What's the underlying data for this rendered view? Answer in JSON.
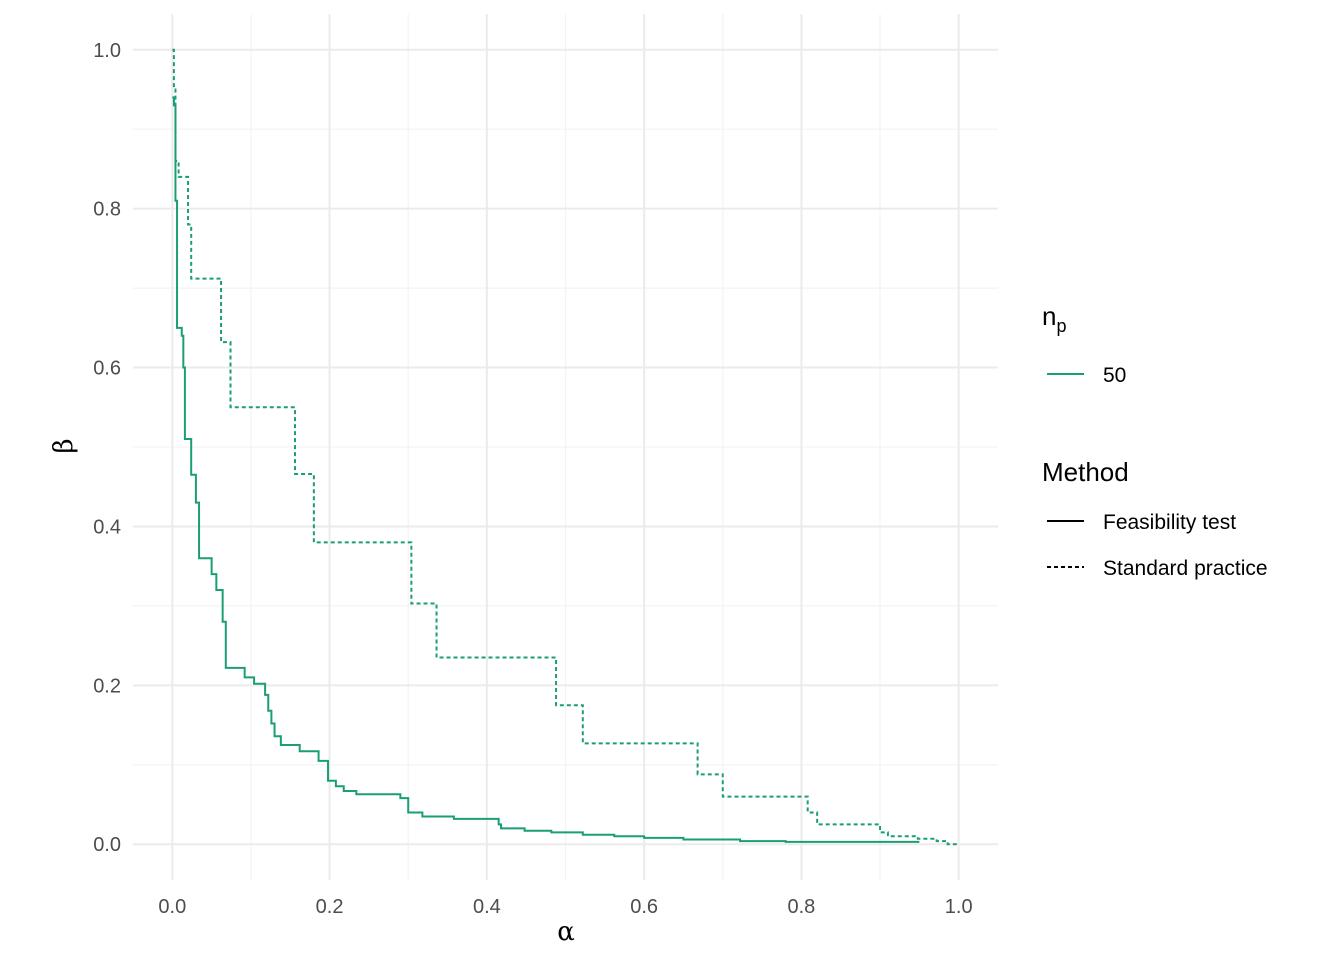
{
  "chart_data": {
    "type": "line",
    "title": "",
    "xlabel": "α",
    "ylabel": "β",
    "xlim": [
      -0.05,
      1.05
    ],
    "ylim": [
      -0.045,
      1.045
    ],
    "xticks": [
      0.0,
      0.2,
      0.4,
      0.6,
      0.8,
      1.0
    ],
    "yticks": [
      0.0,
      0.2,
      0.4,
      0.6,
      0.8,
      1.0
    ],
    "xtick_labels": [
      "0.0",
      "0.2",
      "0.4",
      "0.6",
      "0.8",
      "1.0"
    ],
    "ytick_labels": [
      "0.0",
      "0.2",
      "0.4",
      "0.6",
      "0.8",
      "1.0"
    ],
    "grid": true,
    "legend_position": "right",
    "color": "#1b9e77",
    "legend": {
      "np": {
        "title_main": "n",
        "title_sub": "p",
        "entries": [
          "50"
        ]
      },
      "method": {
        "title": "Method",
        "entries": [
          "Feasibility test",
          "Standard practice"
        ]
      }
    },
    "series": [
      {
        "name": "Feasibility test",
        "linestyle": "solid",
        "points": [
          [
            0.0,
            0.94
          ],
          [
            0.002,
            0.94
          ],
          [
            0.002,
            0.93
          ],
          [
            0.004,
            0.93
          ],
          [
            0.004,
            0.81
          ],
          [
            0.006,
            0.81
          ],
          [
            0.006,
            0.65
          ],
          [
            0.012,
            0.65
          ],
          [
            0.012,
            0.64
          ],
          [
            0.014,
            0.64
          ],
          [
            0.014,
            0.6
          ],
          [
            0.016,
            0.6
          ],
          [
            0.016,
            0.51
          ],
          [
            0.024,
            0.51
          ],
          [
            0.024,
            0.465
          ],
          [
            0.03,
            0.465
          ],
          [
            0.03,
            0.43
          ],
          [
            0.034,
            0.43
          ],
          [
            0.034,
            0.36
          ],
          [
            0.05,
            0.36
          ],
          [
            0.05,
            0.34
          ],
          [
            0.056,
            0.34
          ],
          [
            0.056,
            0.32
          ],
          [
            0.064,
            0.32
          ],
          [
            0.064,
            0.28
          ],
          [
            0.068,
            0.28
          ],
          [
            0.068,
            0.222
          ],
          [
            0.092,
            0.222
          ],
          [
            0.092,
            0.21
          ],
          [
            0.104,
            0.21
          ],
          [
            0.104,
            0.202
          ],
          [
            0.118,
            0.202
          ],
          [
            0.118,
            0.188
          ],
          [
            0.122,
            0.188
          ],
          [
            0.122,
            0.168
          ],
          [
            0.126,
            0.168
          ],
          [
            0.126,
            0.152
          ],
          [
            0.13,
            0.152
          ],
          [
            0.13,
            0.136
          ],
          [
            0.138,
            0.136
          ],
          [
            0.138,
            0.125
          ],
          [
            0.162,
            0.125
          ],
          [
            0.162,
            0.117
          ],
          [
            0.186,
            0.117
          ],
          [
            0.186,
            0.105
          ],
          [
            0.198,
            0.105
          ],
          [
            0.198,
            0.08
          ],
          [
            0.208,
            0.08
          ],
          [
            0.208,
            0.073
          ],
          [
            0.218,
            0.073
          ],
          [
            0.218,
            0.067
          ],
          [
            0.234,
            0.067
          ],
          [
            0.234,
            0.063
          ],
          [
            0.29,
            0.063
          ],
          [
            0.29,
            0.058
          ],
          [
            0.3,
            0.058
          ],
          [
            0.3,
            0.04
          ],
          [
            0.318,
            0.04
          ],
          [
            0.318,
            0.035
          ],
          [
            0.358,
            0.035
          ],
          [
            0.358,
            0.032
          ],
          [
            0.415,
            0.032
          ],
          [
            0.415,
            0.025
          ],
          [
            0.418,
            0.025
          ],
          [
            0.418,
            0.02
          ],
          [
            0.448,
            0.02
          ],
          [
            0.448,
            0.017
          ],
          [
            0.482,
            0.017
          ],
          [
            0.482,
            0.015
          ],
          [
            0.522,
            0.015
          ],
          [
            0.522,
            0.012
          ],
          [
            0.562,
            0.012
          ],
          [
            0.562,
            0.01
          ],
          [
            0.6,
            0.01
          ],
          [
            0.6,
            0.008
          ],
          [
            0.65,
            0.008
          ],
          [
            0.65,
            0.006
          ],
          [
            0.722,
            0.006
          ],
          [
            0.722,
            0.004
          ],
          [
            0.78,
            0.004
          ],
          [
            0.78,
            0.003
          ],
          [
            0.95,
            0.003
          ]
        ]
      },
      {
        "name": "Standard practice",
        "linestyle": "dashed",
        "points": [
          [
            0.0,
            1.0
          ],
          [
            0.002,
            1.0
          ],
          [
            0.002,
            0.95
          ],
          [
            0.004,
            0.95
          ],
          [
            0.004,
            0.86
          ],
          [
            0.008,
            0.86
          ],
          [
            0.008,
            0.84
          ],
          [
            0.02,
            0.84
          ],
          [
            0.02,
            0.78
          ],
          [
            0.024,
            0.78
          ],
          [
            0.024,
            0.712
          ],
          [
            0.062,
            0.712
          ],
          [
            0.062,
            0.632
          ],
          [
            0.074,
            0.632
          ],
          [
            0.074,
            0.55
          ],
          [
            0.156,
            0.55
          ],
          [
            0.156,
            0.466
          ],
          [
            0.18,
            0.466
          ],
          [
            0.18,
            0.38
          ],
          [
            0.304,
            0.38
          ],
          [
            0.304,
            0.303
          ],
          [
            0.336,
            0.303
          ],
          [
            0.336,
            0.235
          ],
          [
            0.488,
            0.235
          ],
          [
            0.488,
            0.175
          ],
          [
            0.522,
            0.175
          ],
          [
            0.522,
            0.127
          ],
          [
            0.668,
            0.127
          ],
          [
            0.668,
            0.088
          ],
          [
            0.7,
            0.088
          ],
          [
            0.7,
            0.06
          ],
          [
            0.808,
            0.06
          ],
          [
            0.808,
            0.04
          ],
          [
            0.82,
            0.04
          ],
          [
            0.82,
            0.025
          ],
          [
            0.9,
            0.025
          ],
          [
            0.9,
            0.015
          ],
          [
            0.91,
            0.015
          ],
          [
            0.91,
            0.01
          ],
          [
            0.948,
            0.01
          ],
          [
            0.948,
            0.007
          ],
          [
            0.972,
            0.007
          ],
          [
            0.972,
            0.004
          ],
          [
            0.986,
            0.004
          ],
          [
            0.986,
            0.0
          ],
          [
            1.0,
            0.0
          ]
        ]
      }
    ]
  }
}
